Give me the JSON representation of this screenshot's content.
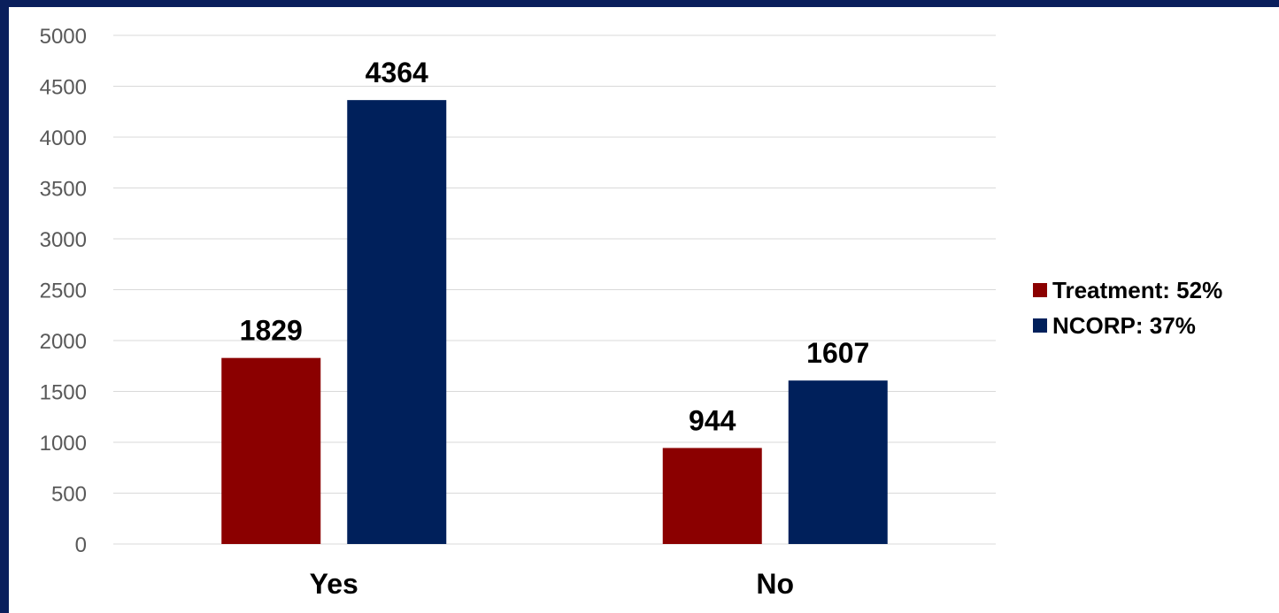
{
  "chart_data": {
    "type": "bar",
    "categories": [
      "Yes",
      "No"
    ],
    "series": [
      {
        "name": "Treatment: 52%",
        "values": [
          1829,
          944
        ],
        "color": "#8b0000"
      },
      {
        "name": "NCORP: 37%",
        "values": [
          4364,
          1607
        ],
        "color": "#00205b"
      }
    ],
    "yticks": [
      0,
      500,
      1000,
      1500,
      2000,
      2500,
      3000,
      3500,
      4000,
      4500,
      5000
    ],
    "ylim": [
      0,
      5000
    ],
    "grid": true,
    "legend_position": "right",
    "data_labels": true,
    "title": "",
    "xlabel": "",
    "ylabel": ""
  },
  "colors": {
    "border": "#0a1f5c",
    "gridline": "#d9d9d9",
    "tick_text": "#595959"
  }
}
